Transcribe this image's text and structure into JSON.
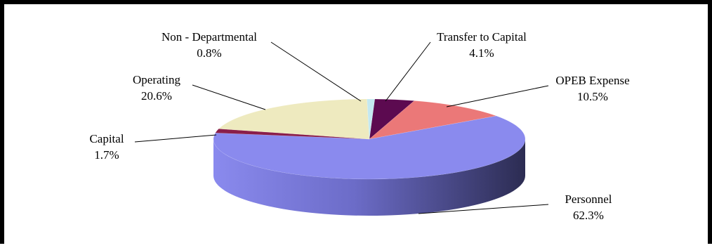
{
  "chart_data": {
    "type": "pie",
    "title": "",
    "legend": "none",
    "style": "3d",
    "categories": [
      "Transfer to Capital",
      "OPEB Expense",
      "Personnel",
      "Capital",
      "Operating",
      "Non - Departmental"
    ],
    "values": [
      4.1,
      10.5,
      62.3,
      1.7,
      20.6,
      0.8
    ],
    "labels": [
      {
        "name": "Transfer to Capital",
        "pct": "4.1%"
      },
      {
        "name": "OPEB Expense",
        "pct": "10.5%"
      },
      {
        "name": "Personnel",
        "pct": "62.3%"
      },
      {
        "name": "Capital",
        "pct": "1.7%"
      },
      {
        "name": "Operating",
        "pct": "20.6%"
      },
      {
        "name": "Non - Departmental",
        "pct": "0.8%"
      }
    ],
    "colors": [
      "#5c0a50",
      "#eb7878",
      "#8a8aee",
      "#8a1e4a",
      "#eeeabf",
      "#c4e8f0"
    ],
    "side_colors": [
      "#3a0633",
      "#a85050",
      "#5a5ab0",
      "#5a1030",
      "#b8b488",
      "#8ab8c4"
    ]
  }
}
